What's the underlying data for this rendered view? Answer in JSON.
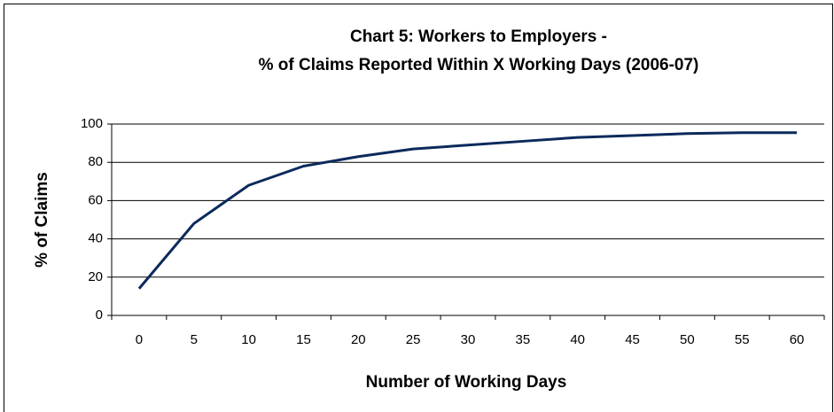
{
  "chart_data": {
    "type": "line",
    "title": [
      "Chart 5: Workers to Employers -",
      "% of Claims Reported Within X Working Days (2006-07)"
    ],
    "x_label": "Number of  Working Days",
    "y_label": "% of Claims",
    "categories": [
      "0",
      "5",
      "10",
      "15",
      "20",
      "25",
      "30",
      "35",
      "40",
      "45",
      "50",
      "55",
      "60"
    ],
    "series": [
      {
        "name": "% of Claims",
        "color": "#0b2a5c",
        "values": [
          14,
          48,
          68,
          78,
          83,
          87,
          89,
          91,
          93,
          94,
          95,
          95.5,
          95.5
        ]
      }
    ],
    "ylim": [
      0,
      100
    ],
    "yticks": [
      0,
      20,
      40,
      60,
      80,
      100
    ],
    "grid": true
  }
}
